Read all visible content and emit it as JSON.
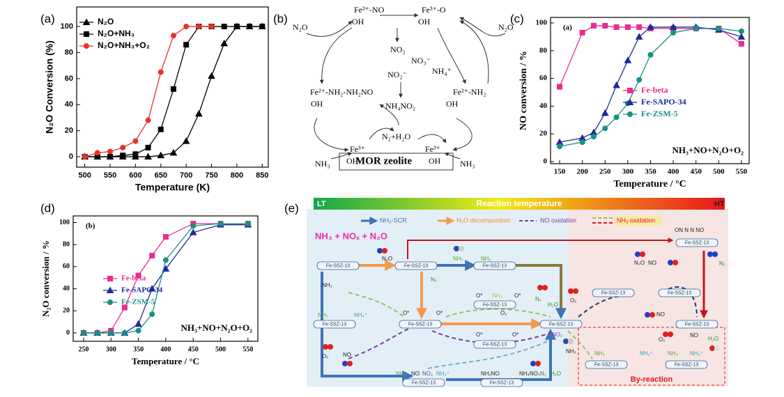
{
  "panel_labels": [
    "(a)",
    "(b)",
    "(c)",
    "(d)",
    "(e)"
  ],
  "chart_data": [
    {
      "type": "line",
      "xlabel": "Temperature (K)",
      "ylabel": "N₂O Conversion (%)",
      "xlim": [
        484,
        862
      ],
      "xticks": [
        500,
        550,
        600,
        650,
        700,
        750,
        800,
        850
      ],
      "ylim": [
        -8,
        115
      ],
      "yticks": [
        0,
        20,
        40,
        60,
        80,
        100
      ],
      "legend": "upper left",
      "series": [
        {
          "name": "N₂O",
          "color": "#000000",
          "marker": "triangle",
          "x": [
            500,
            525,
            550,
            575,
            600,
            625,
            650,
            675,
            700,
            725,
            750,
            775,
            800,
            825,
            850
          ],
          "values": [
            0,
            0,
            0,
            0,
            0,
            0,
            1,
            3,
            12,
            33,
            62,
            87,
            100,
            100,
            100
          ]
        },
        {
          "name": "N₂O+NH₃",
          "color": "#000000",
          "marker": "square",
          "x": [
            500,
            525,
            550,
            575,
            600,
            625,
            650,
            675,
            700,
            725,
            750,
            775,
            800,
            825,
            850
          ],
          "values": [
            0,
            0,
            0,
            1,
            2,
            7,
            21,
            52,
            86,
            100,
            100,
            100,
            100,
            100,
            100
          ]
        },
        {
          "name": "N₂O+NH₃+O₂",
          "color": "#e8312a",
          "marker": "circle",
          "x": [
            500,
            525,
            550,
            575,
            600,
            625,
            650,
            675,
            700,
            725,
            750
          ],
          "values": [
            0,
            3,
            4,
            7,
            12,
            28,
            65,
            93,
            100,
            100,
            100
          ]
        }
      ]
    },
    {
      "type": "line",
      "xlabel": "Temperature / °C",
      "ylabel": "NO conversion / %",
      "xlim": [
        130,
        567
      ],
      "xticks": [
        150,
        200,
        250,
        300,
        350,
        400,
        450,
        500,
        550
      ],
      "ylim": [
        -1.5,
        104
      ],
      "yticks": [
        0,
        20,
        40,
        60,
        80,
        100
      ],
      "legend": "center right",
      "annotations": [
        "(a)",
        "NH₃+NO+N₂O+O₂"
      ],
      "x": [
        150,
        200,
        225,
        250,
        275,
        300,
        325,
        350,
        400,
        450,
        500,
        550
      ],
      "series": [
        {
          "name": "Fe-beta",
          "color": "#ec2a8f",
          "marker": "square",
          "values": [
            54,
            93,
            98,
            98,
            97,
            97,
            97,
            96,
            96,
            96,
            96,
            85
          ]
        },
        {
          "name": "Fe-SAPO-34",
          "color": "#1f2a9c",
          "marker": "triangle",
          "values": [
            14,
            17,
            21,
            35,
            55,
            73,
            90,
            97,
            97,
            97,
            95,
            90
          ]
        },
        {
          "name": "Fe-ZSM-5",
          "color": "#1b9080",
          "marker": "circle",
          "values": [
            11,
            14,
            18,
            24,
            32,
            42,
            59,
            77,
            93,
            96,
            96,
            94
          ]
        }
      ]
    },
    {
      "type": "line",
      "xlabel": "Temperature / °C",
      "ylabel": "N₂O conversion / %",
      "xlim": [
        231,
        568
      ],
      "xticks": [
        250,
        300,
        350,
        400,
        450,
        500,
        550
      ],
      "ylim": [
        -7.6,
        106
      ],
      "yticks": [
        0,
        20,
        40,
        60,
        80,
        100
      ],
      "legend": "center left",
      "annotations": [
        "(b)",
        "NH₃+NO+N₂O+O₂"
      ],
      "x": [
        250,
        275,
        300,
        325,
        350,
        375,
        400,
        450,
        500,
        550
      ],
      "series": [
        {
          "name": "Fe-beta",
          "color": "#ec2a8f",
          "marker": "square",
          "values": [
            0,
            0,
            2,
            23,
            52,
            70,
            87,
            99,
            99,
            99
          ]
        },
        {
          "name": "Fe-SAPO-34",
          "color": "#1f2a9c",
          "marker": "triangle",
          "values": [
            0,
            0,
            0,
            0,
            8,
            40,
            58,
            91,
            98,
            98
          ]
        },
        {
          "name": "Fe-ZSM-5",
          "color": "#1b9080",
          "marker": "circle",
          "values": [
            0,
            0,
            0,
            0,
            2,
            17,
            66,
            97,
            99,
            99
          ]
        }
      ]
    }
  ],
  "diagram_b": {
    "labels": [
      "N₂O",
      "Fe³⁺-NO",
      "OH",
      "Fe³⁺-O",
      "OH",
      "N₂O",
      "NO₂",
      "NO₃⁻",
      "NO₂⁻",
      "NH₄⁺",
      "Fe²⁺-NH₂-NH₂NO",
      "OH",
      "NH₄NO₂",
      "Fe²⁺-NH₂",
      "OH",
      "N₂+H₂O",
      "Fe³⁺",
      "OH",
      "Fe³⁺",
      "OH",
      "NH₃",
      "MOR  zeolite",
      "NH₃"
    ]
  },
  "diagram_e": {
    "banner": {
      "left": "LT",
      "title": "Reaction temperature",
      "right": "HT"
    },
    "legend": [
      "NH₃-SCR",
      "N₂O decomposition",
      "NO oxidation",
      "NH₃ oxidation"
    ],
    "reactants": "NH₃ + NOₓ + N₂O",
    "catalyst": "Fe-SSZ-13",
    "by_reaction": "By-reaction",
    "species": [
      "N₂O",
      "NH₃",
      "NH₃",
      "N₂",
      "NH₃",
      "O*",
      "O*",
      "O*",
      "O*",
      "NH₃",
      "N₂",
      "H₂O",
      "O₂",
      "NO₂",
      "O*",
      "O*",
      "NH₃",
      "NH₄⁺",
      "O₂",
      "NO",
      "NH₃",
      "NO",
      "NO₂",
      "NH₄⁺",
      "NH₂NO",
      "NH₄NO₃",
      "N₂",
      "H₂O",
      "O₂",
      "NH₃",
      "NH₃",
      "NH₄⁺",
      "O₂",
      "NH₃",
      "NH₄⁺",
      "H₂O",
      "N₂O",
      "NO",
      "N₂",
      "NO",
      "NO",
      "ON N N NO"
    ]
  }
}
